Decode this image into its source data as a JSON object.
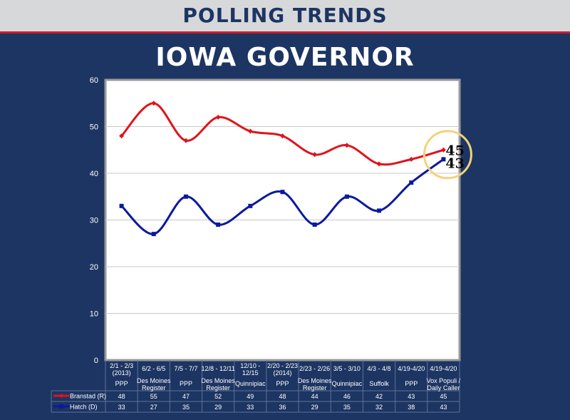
{
  "header": {
    "section": "POLLING TRENDS",
    "title": "IOWA GOVERNOR"
  },
  "chart_data": {
    "type": "line",
    "title": "IOWA GOVERNOR",
    "ylim": [
      0,
      60
    ],
    "yticks": [
      0,
      10,
      20,
      30,
      40,
      50,
      60
    ],
    "grid": true,
    "categories": [
      {
        "dates": [
          "2/1 - 2/3",
          "(2013)"
        ],
        "pollster": [
          "PPP"
        ]
      },
      {
        "dates": [
          "6/2 - 6/5"
        ],
        "pollster": [
          "Des Moines",
          "Register"
        ]
      },
      {
        "dates": [
          "7/5 - 7/7"
        ],
        "pollster": [
          "PPP"
        ]
      },
      {
        "dates": [
          "12/8 - 12/11"
        ],
        "pollster": [
          "Des Moines",
          "Register"
        ]
      },
      {
        "dates": [
          "12/10 -",
          "12/15"
        ],
        "pollster": [
          "Quinnipiac"
        ]
      },
      {
        "dates": [
          "2/20 - 2/23",
          "(2014)"
        ],
        "pollster": [
          "PPP"
        ]
      },
      {
        "dates": [
          "2/23 - 2/26"
        ],
        "pollster": [
          "Des Moines",
          "Register"
        ]
      },
      {
        "dates": [
          "3/5 - 3/10"
        ],
        "pollster": [
          "Quinnipiac"
        ]
      },
      {
        "dates": [
          "4/3 - 4/8"
        ],
        "pollster": [
          "Suffolk"
        ]
      },
      {
        "dates": [
          "4/19-4/20"
        ],
        "pollster": [
          "PPP"
        ]
      },
      {
        "dates": [
          "4/19-4/20"
        ],
        "pollster": [
          "Vox Populi /",
          "Daily Caller"
        ]
      }
    ],
    "series": [
      {
        "name": "Branstad (R)",
        "color": "#e0131b",
        "values": [
          48,
          55,
          47,
          52,
          49,
          48,
          44,
          46,
          42,
          43,
          45
        ]
      },
      {
        "name": "Hatch (D)",
        "color": "#0b1a9c",
        "values": [
          33,
          27,
          35,
          29,
          33,
          36,
          29,
          35,
          32,
          38,
          43
        ]
      }
    ],
    "annotations": [
      {
        "text": "45",
        "series": 0
      },
      {
        "text": "43",
        "series": 1
      }
    ],
    "highlight_color": "#f5d27a"
  }
}
